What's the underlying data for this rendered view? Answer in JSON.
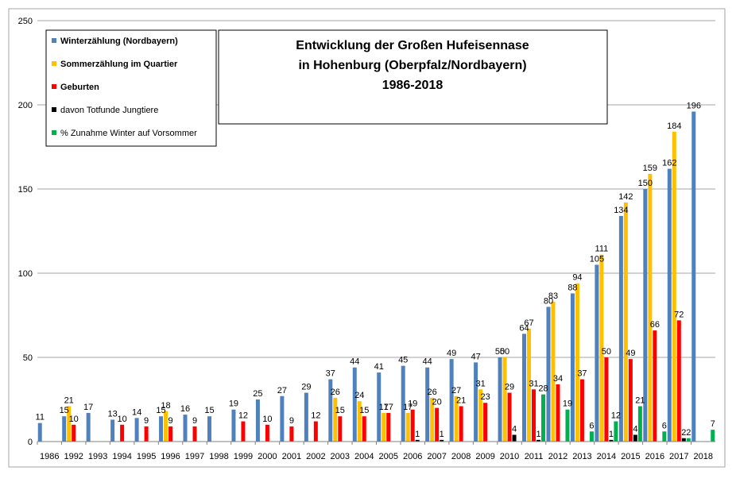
{
  "chart_data": {
    "type": "bar",
    "title_lines": [
      "Entwicklung  der Großen Hufeisennase",
      "in Hohenburg (Oberpfalz/Nordbayern)",
      "1986-2018"
    ],
    "categories": [
      "1986",
      "1992",
      "1993",
      "1994",
      "1995",
      "1996",
      "1997",
      "1998",
      "1999",
      "2000",
      "2001",
      "2002",
      "2003",
      "2004",
      "2005",
      "2006",
      "2007",
      "2008",
      "2009",
      "2010",
      "2011",
      "2012",
      "2013",
      "2014",
      "2015",
      "2016",
      "2017",
      "2018"
    ],
    "ylim": [
      0,
      250
    ],
    "yticks": [
      0,
      50,
      100,
      150,
      200,
      250
    ],
    "grid": true,
    "legend_position": "top-left",
    "series": [
      {
        "name": "Winterzählung (Nordbayern)",
        "color": "#4f81bd",
        "values": [
          11,
          15,
          17,
          13,
          14,
          15,
          16,
          15,
          19,
          25,
          27,
          29,
          37,
          44,
          41,
          45,
          44,
          49,
          47,
          50,
          64,
          80,
          88,
          105,
          134,
          150,
          162,
          196
        ],
        "labels": [
          "11",
          "15",
          "17",
          "13",
          "14",
          "15",
          "16",
          "15",
          "19",
          "25",
          "27",
          "29",
          "37",
          "44",
          "41",
          "45",
          "44",
          "49",
          "47",
          "50",
          "64",
          "80",
          "88",
          "105",
          "134",
          "150",
          "162",
          "196"
        ]
      },
      {
        "name": "Sommerzählung im Quartier",
        "color": "#ffc000",
        "values": [
          null,
          21,
          null,
          null,
          null,
          18,
          null,
          null,
          null,
          null,
          null,
          null,
          26,
          24,
          17,
          17,
          26,
          27,
          31,
          50,
          67,
          83,
          94,
          111,
          142,
          159,
          184,
          null
        ],
        "labels": [
          "",
          "21",
          "",
          "",
          "",
          "18",
          "",
          "",
          "",
          "",
          "",
          "",
          "26",
          "24",
          "17",
          "17",
          "26",
          "27",
          "31",
          "50",
          "67",
          "83",
          "94",
          "111",
          "142",
          "159",
          "184",
          ""
        ]
      },
      {
        "name": "Geburten",
        "color": "#ff0000",
        "values": [
          null,
          10,
          null,
          10,
          9,
          9,
          9,
          null,
          12,
          10,
          9,
          12,
          15,
          15,
          17,
          19,
          20,
          21,
          23,
          29,
          31,
          34,
          37,
          50,
          49,
          66,
          72,
          null
        ],
        "labels": [
          "",
          "10",
          "",
          "10",
          "9",
          "9",
          "9",
          "",
          "12",
          "10",
          "9",
          "12",
          "15",
          "15",
          "17",
          "19",
          "20",
          "21",
          "23",
          "29",
          "31",
          "34",
          "37",
          "50",
          "49",
          "66",
          "72",
          ""
        ]
      },
      {
        "name": "davon Totfunde Jungtiere",
        "color": "#000000",
        "values": [
          null,
          null,
          null,
          null,
          null,
          null,
          null,
          null,
          null,
          null,
          null,
          null,
          null,
          null,
          null,
          1,
          1,
          null,
          null,
          4,
          1,
          null,
          null,
          1,
          4,
          null,
          2,
          null
        ],
        "labels": [
          "",
          "",
          "",
          "",
          "",
          "",
          "",
          "",
          "",
          "",
          "",
          "",
          "",
          "",
          "",
          "1",
          "1",
          "",
          "",
          "4",
          "1",
          "",
          "",
          "1",
          "4",
          "",
          "2",
          ""
        ]
      },
      {
        "name": "% Zunahme Winter auf Vorsommer",
        "color": "#00b050",
        "values": [
          null,
          null,
          null,
          null,
          null,
          null,
          null,
          null,
          null,
          null,
          null,
          null,
          null,
          null,
          null,
          null,
          null,
          null,
          null,
          null,
          28,
          19,
          6,
          12,
          21,
          6,
          2,
          7
        ],
        "labels": [
          "",
          "",
          "",
          "",
          "",
          "",
          "",
          "",
          "",
          "",
          "",
          "",
          "",
          "",
          "",
          "",
          "",
          "",
          "",
          "",
          "28",
          "19",
          "6",
          "12",
          "21",
          "6",
          "2",
          "7"
        ]
      }
    ]
  }
}
